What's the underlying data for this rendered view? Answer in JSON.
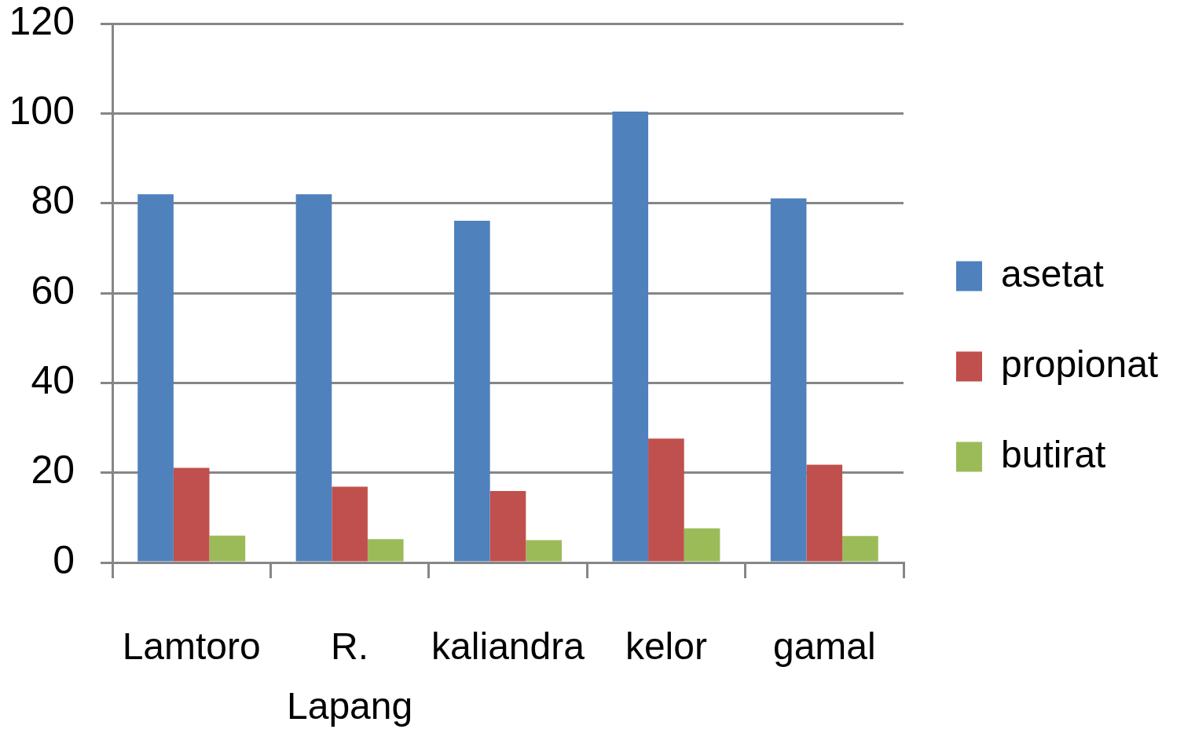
{
  "chart_data": {
    "type": "bar",
    "categories": [
      "Lamtoro",
      "R. Lapang",
      "kaliandra",
      "kelor",
      "gamal"
    ],
    "series": [
      {
        "name": "asetat",
        "color": "#4f81bd",
        "values": [
          82,
          82,
          76.1,
          100.4,
          81.1
        ]
      },
      {
        "name": "propionat",
        "color": "#c0504d",
        "values": [
          21.1,
          16.9,
          15.9,
          27.6,
          21.8
        ]
      },
      {
        "name": "butirat",
        "color": "#9bbb59",
        "values": [
          6,
          5.2,
          5,
          7.6,
          5.9
        ]
      }
    ],
    "ylim": [
      0,
      120
    ],
    "yticks": [
      0,
      20,
      40,
      60,
      80,
      100,
      120
    ],
    "grid": "y",
    "legend": "right"
  }
}
